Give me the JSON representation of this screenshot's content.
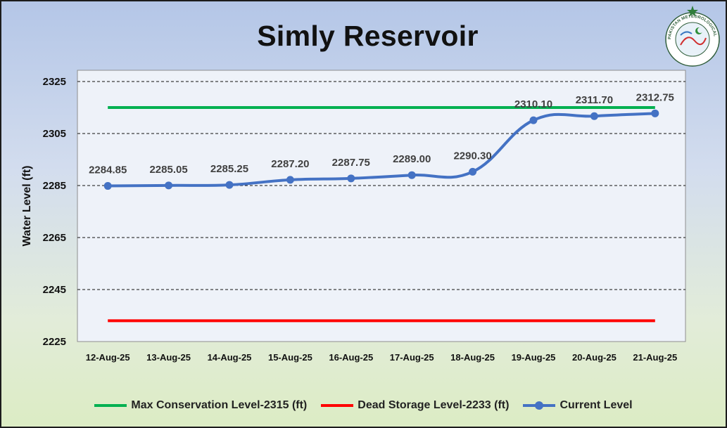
{
  "chart_data": {
    "type": "line",
    "title": "Simly Reservoir",
    "ylabel": "Water Level (ft)",
    "xlabel": "",
    "ylim": [
      2225,
      2325
    ],
    "yticks": [
      2225,
      2245,
      2265,
      2285,
      2305,
      2325
    ],
    "categories": [
      "12-Aug-25",
      "13-Aug-25",
      "14-Aug-25",
      "15-Aug-25",
      "16-Aug-25",
      "17-Aug-25",
      "18-Aug-25",
      "19-Aug-25",
      "20-Aug-25",
      "21-Aug-25"
    ],
    "series": [
      {
        "name": "Current Level",
        "color": "#4472c4",
        "values": [
          2284.85,
          2285.05,
          2285.25,
          2287.2,
          2287.75,
          2289.0,
          2290.3,
          2310.1,
          2311.7,
          2312.75
        ],
        "labels": [
          "2284.85",
          "2285.05",
          "2285.25",
          "2287.20",
          "2287.75",
          "2289.00",
          "2290.30",
          "2310.10",
          "2311.70",
          "2312.75"
        ]
      }
    ],
    "reference_lines": [
      {
        "name": "Max Conservation Level-2315 (ft)",
        "value": 2315,
        "color": "#00b050"
      },
      {
        "name": "Dead Storage Level-2233 (ft)",
        "value": 2233,
        "color": "#ff0000"
      }
    ],
    "grid": "dashed horizontal",
    "legend": "bottom"
  },
  "logo": {
    "icon": "pakistan-meteorological-department-seal",
    "text": "PAKISTAN METEOROLOGICAL DEPARTMENT"
  },
  "legend_items": [
    {
      "label": "Max Conservation Level-2315 (ft)",
      "color": "#00b050",
      "marker": false
    },
    {
      "label": "Dead Storage Level-2233 (ft)",
      "color": "#ff0000",
      "marker": false
    },
    {
      "label": "Current Level",
      "color": "#4472c4",
      "marker": true
    }
  ]
}
